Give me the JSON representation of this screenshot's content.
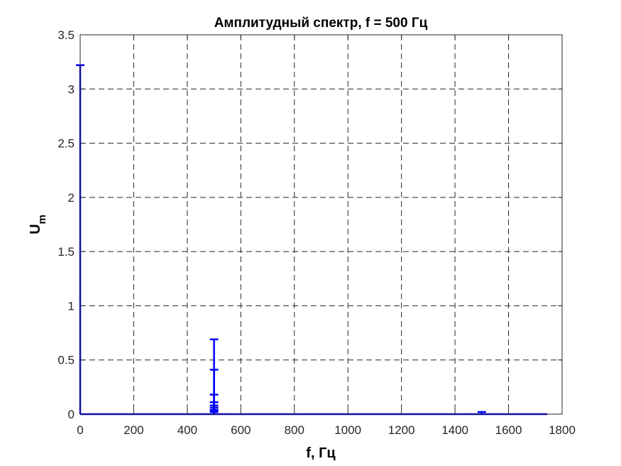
{
  "chart_data": {
    "type": "stem",
    "title": "Амплитудный спектр, f = 500 Гц",
    "xlabel": "f, Гц",
    "ylabel_main": "U",
    "ylabel_sub": "m",
    "xlim": [
      0,
      1800
    ],
    "ylim": [
      0,
      3.5
    ],
    "xticks": [
      0,
      200,
      400,
      600,
      800,
      1000,
      1200,
      1400,
      1600,
      1800
    ],
    "yticks": [
      0,
      0.5,
      1,
      1.5,
      2,
      2.5,
      3,
      3.5
    ],
    "xtick_labels": [
      "0",
      "200",
      "400",
      "600",
      "800",
      "1000",
      "1200",
      "1400",
      "1600",
      "1800"
    ],
    "ytick_labels": [
      "0",
      "0.5",
      "1",
      "1.5",
      "2",
      "2.5",
      "3",
      "3.5"
    ],
    "grid": true,
    "line_color": "#0000ff",
    "data_xmax": 1745,
    "stems": [
      {
        "x": 0,
        "y": 3.22
      },
      {
        "x": 500,
        "y": 0.69
      },
      {
        "x": 500,
        "y": 0.41
      },
      {
        "x": 500,
        "y": 0.18
      },
      {
        "x": 500,
        "y": 0.11
      },
      {
        "x": 500,
        "y": 0.08
      },
      {
        "x": 500,
        "y": 0.06
      },
      {
        "x": 500,
        "y": 0.04
      },
      {
        "x": 500,
        "y": 0.03
      },
      {
        "x": 500,
        "y": 0.02
      },
      {
        "x": 1500,
        "y": 0.02
      }
    ]
  }
}
